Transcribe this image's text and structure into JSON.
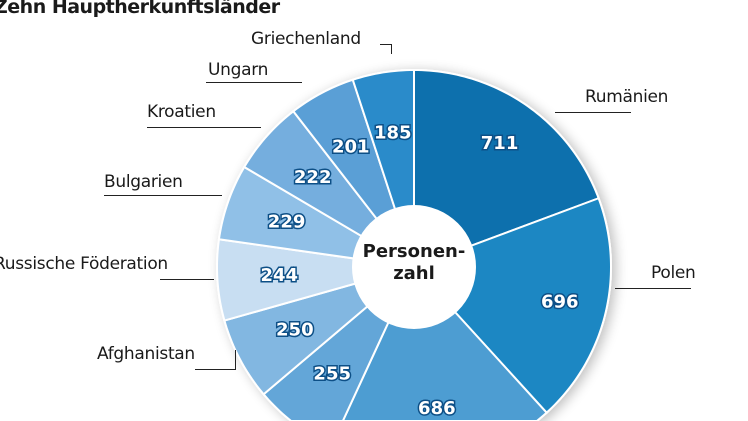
{
  "chart_data": {
    "type": "pie",
    "title": "Zehn Hauptherkunftsländer",
    "center_label": [
      "Personen-",
      "zahl"
    ],
    "slices": [
      {
        "label": "Rumänien",
        "value": 711,
        "color": "#0b6fad"
      },
      {
        "label": "Polen",
        "value": 696,
        "color": "#1a87c3"
      },
      {
        "label": "",
        "value": 686,
        "color": "#4d9dd2"
      },
      {
        "label": "",
        "value": 255,
        "color": "#63a6d8"
      },
      {
        "label": "Afghanistan",
        "value": 250,
        "color": "#82b7e1"
      },
      {
        "label": "Russische Föderation",
        "value": 244,
        "color": "#c8def2"
      },
      {
        "label": "Bulgarien",
        "value": 229,
        "color": "#90c0e7"
      },
      {
        "label": "Kroatien",
        "value": 222,
        "color": "#74aede"
      },
      {
        "label": "Ungarn",
        "value": 201,
        "color": "#5a9fd6"
      },
      {
        "label": "Griechenland",
        "value": 185,
        "color": "#2a8bca"
      }
    ],
    "start_angle": "top",
    "direction": "clockwise",
    "donut": true
  }
}
